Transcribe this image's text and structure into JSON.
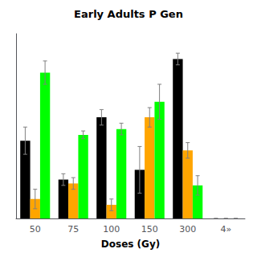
{
  "chart_data": {
    "type": "bar",
    "title": "Early Adults P Gen",
    "xlabel": "Doses (Gy)",
    "categories": [
      "50",
      "75",
      "100",
      "150",
      "300",
      "4»"
    ],
    "series": [
      {
        "color": "#000000",
        "values": [
          40,
          20,
          52,
          25,
          82,
          0
        ],
        "errors": [
          7,
          3,
          4,
          12,
          3,
          0
        ]
      },
      {
        "color": "#FFA500",
        "values": [
          10,
          18,
          7,
          52,
          35,
          0
        ],
        "errors": [
          5,
          3,
          3,
          5,
          4,
          0
        ]
      },
      {
        "color": "#00FF00",
        "values": [
          75,
          43,
          46,
          60,
          17,
          0
        ],
        "errors": [
          6,
          2,
          3,
          9,
          5,
          0
        ]
      }
    ],
    "ylim": [
      0,
      95
    ],
    "grid": false,
    "tick_labels": "x"
  }
}
